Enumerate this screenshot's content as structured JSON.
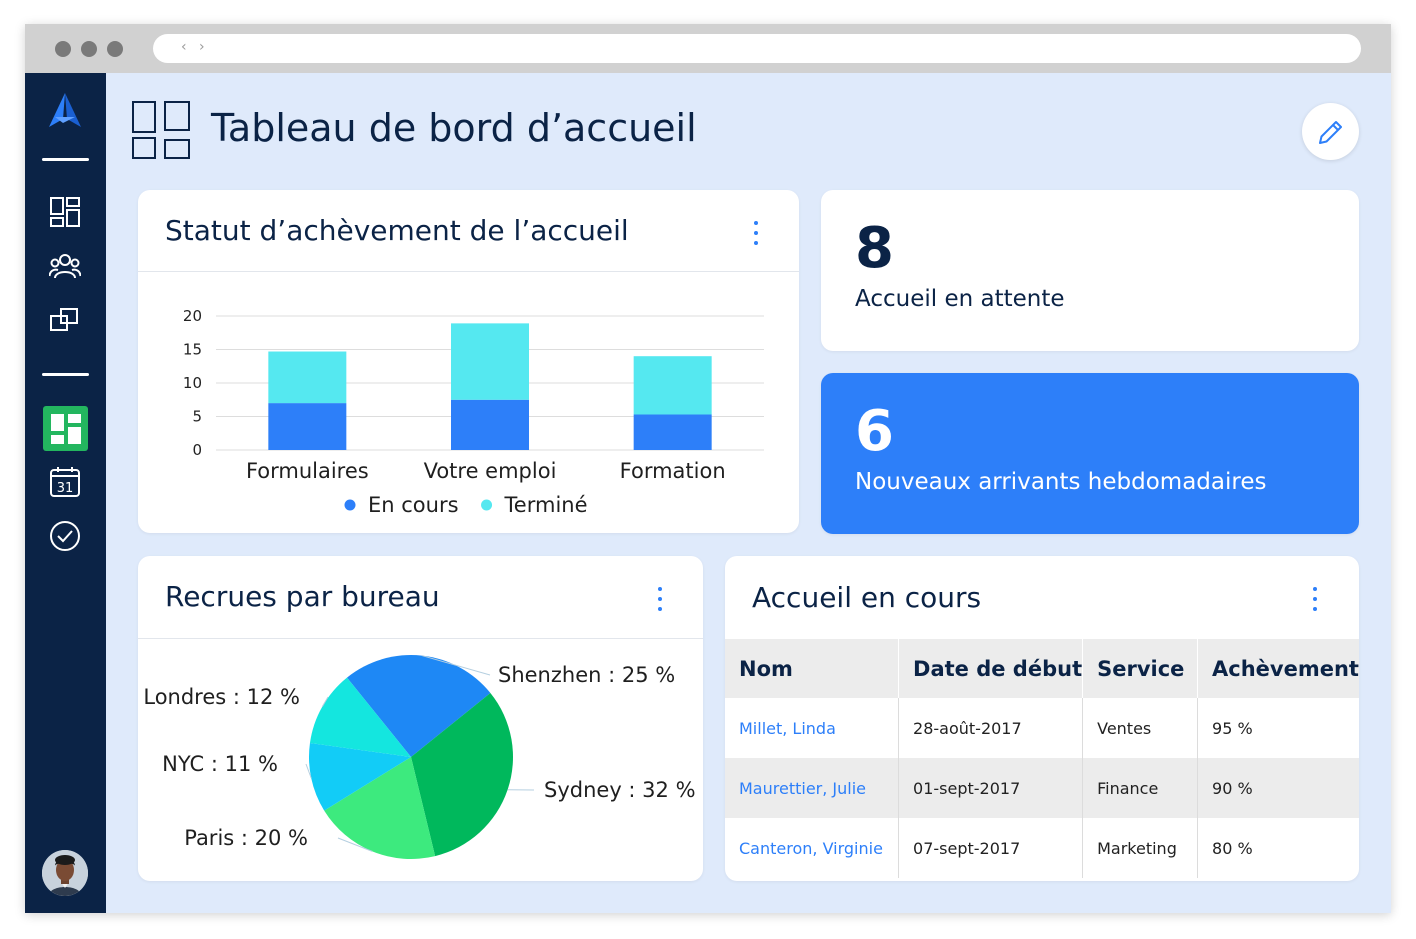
{
  "page": {
    "title": "Tableau de bord d’accueil"
  },
  "colors": {
    "sidebar": "#0b2346",
    "accent": "#2d7ff9",
    "active_nav": "#23b65f",
    "page_background": "#dfeafb"
  },
  "sidebar": {
    "items": [
      {
        "icon": "dashboard-icon",
        "active": false
      },
      {
        "icon": "people-icon",
        "active": false
      },
      {
        "icon": "boxes-icon",
        "active": false
      },
      {
        "icon": "board-icon",
        "active": true
      },
      {
        "icon": "calendar-icon",
        "label": "31",
        "active": false
      },
      {
        "icon": "check-circle-icon",
        "active": false
      }
    ]
  },
  "completion_card": {
    "title": "Statut d’achèvement de l’accueil"
  },
  "stats": {
    "pending_number": "8",
    "pending_label": "Accueil en attente",
    "new_hires_number": "6",
    "new_hires_label": "Nouveaux arrivants hebdomadaires"
  },
  "offices_card": {
    "title": "Recrues par bureau"
  },
  "progress_card": {
    "title": "Accueil en cours",
    "columns": [
      "Nom",
      "Date de début",
      "Service",
      "Achèvement"
    ],
    "rows": [
      {
        "name": "Millet, Linda",
        "start": "28-août-2017",
        "service": "Ventes",
        "completion": "95 %"
      },
      {
        "name": "Maurettier, Julie",
        "start": "01-sept-2017",
        "service": "Finance",
        "completion": "90 %"
      },
      {
        "name": "Canteron, Virginie",
        "start": "07-sept-2017",
        "service": "Marketing",
        "completion": "80 %"
      }
    ]
  },
  "chart_data": [
    {
      "type": "bar",
      "stacked": true,
      "categories": [
        "Formulaires",
        "Votre emploi",
        "Formation"
      ],
      "series": [
        {
          "name": "En cours",
          "color": "#2d7ff9",
          "values": [
            7,
            7.5,
            5.3
          ]
        },
        {
          "name": "Terminé",
          "color": "#55e8f0",
          "values": [
            7.7,
            11.4,
            8.7
          ]
        }
      ],
      "yticks": [
        0,
        5,
        10,
        15,
        20
      ],
      "ylim": [
        0,
        20
      ],
      "grid": true,
      "legend": "bottom"
    },
    {
      "type": "pie",
      "slices": [
        {
          "label": "Shenzhen : 25 %",
          "value": 25,
          "color": "#1e88f5"
        },
        {
          "label": "Sydney : 32 %",
          "value": 32,
          "color": "#00b85c"
        },
        {
          "label": "Paris : 20 %",
          "value": 20,
          "color": "#3dea7e"
        },
        {
          "label": "NYC : 11 %",
          "value": 11,
          "color": "#12ccf7"
        },
        {
          "label": "Londres : 12 %",
          "value": 12,
          "color": "#14e6df"
        }
      ]
    }
  ]
}
